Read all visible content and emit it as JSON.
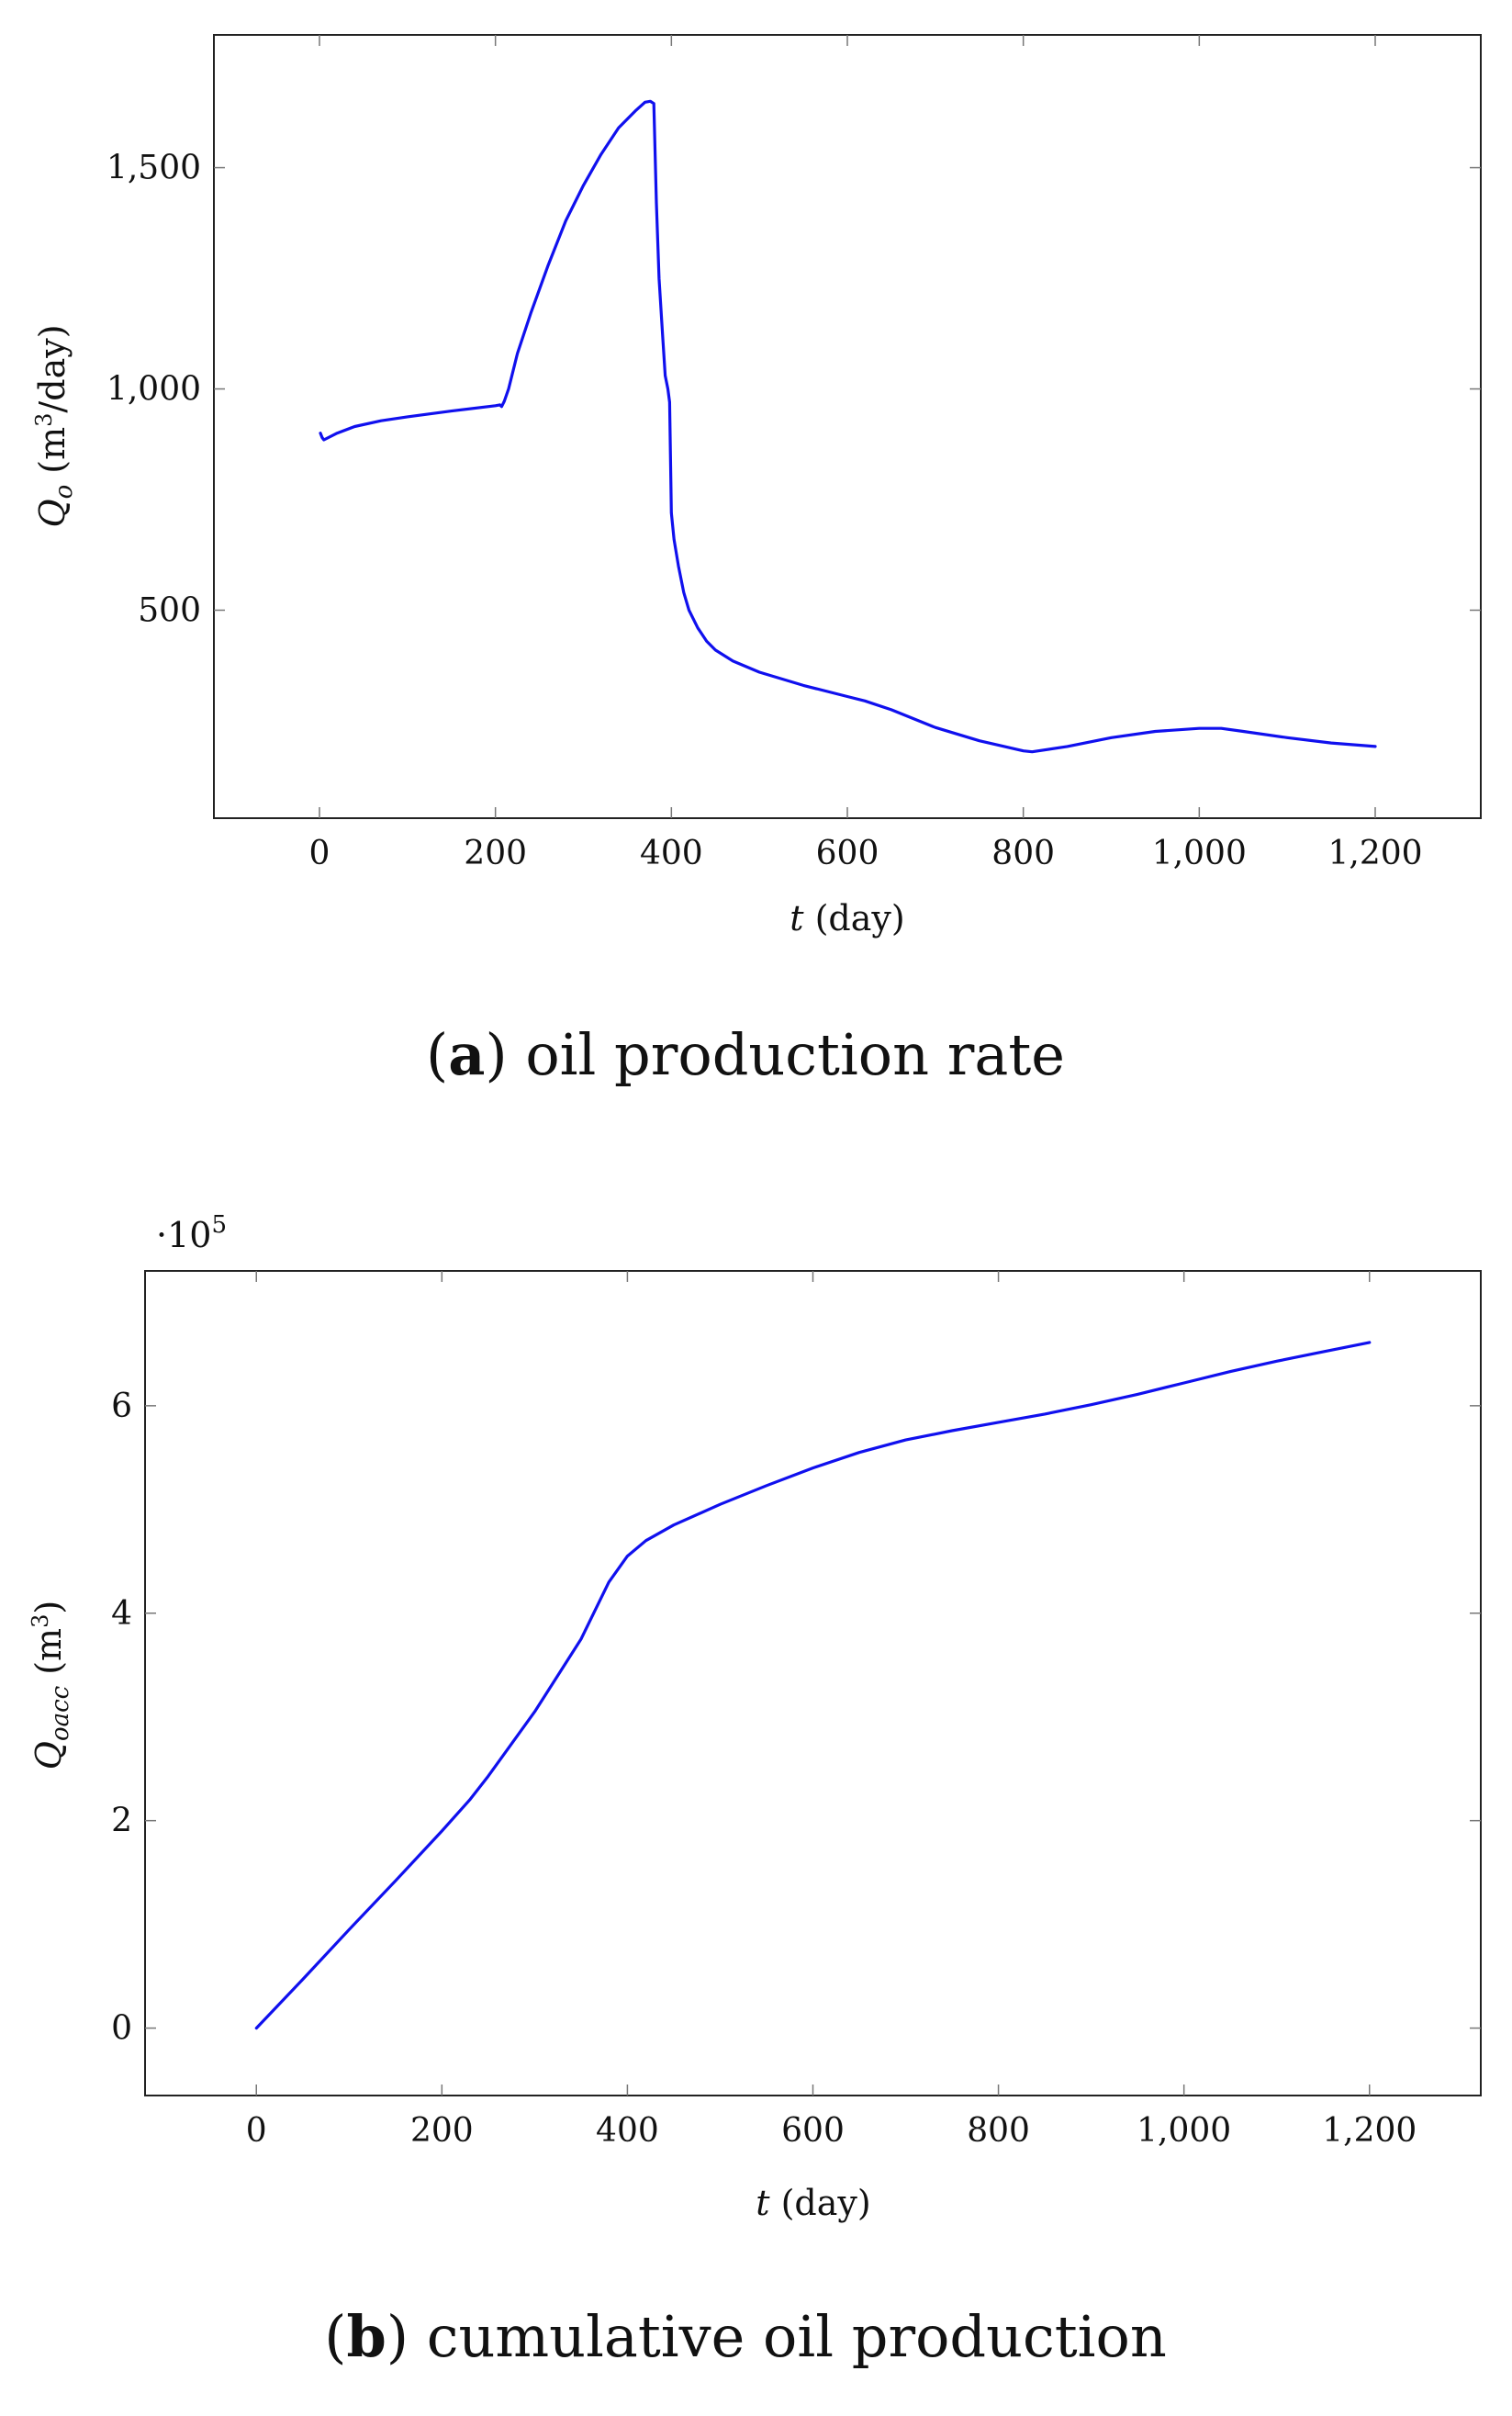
{
  "chart_data": [
    {
      "type": "line",
      "caption_letter": "a",
      "caption_text": "oil production rate",
      "xlabel_symbol": "t",
      "xlabel_unit": "(day)",
      "ylabel_symbol": "Q",
      "ylabel_sub": "o",
      "ylabel_unit_pre": "(m",
      "ylabel_unit_sup": "3",
      "ylabel_unit_post": "/day)",
      "xlim": [
        -120,
        1320
      ],
      "ylim": [
        30,
        1800
      ],
      "xticks": [
        {
          "value": 0,
          "label": "0"
        },
        {
          "value": 200,
          "label": "200"
        },
        {
          "value": 400,
          "label": "400"
        },
        {
          "value": 600,
          "label": "600"
        },
        {
          "value": 800,
          "label": "800"
        },
        {
          "value": 1000,
          "label": "1,000"
        },
        {
          "value": 1200,
          "label": "1,200"
        }
      ],
      "yticks": [
        {
          "value": 500,
          "label": "500"
        },
        {
          "value": 1000,
          "label": "1,000"
        },
        {
          "value": 1500,
          "label": "1,500"
        }
      ],
      "grid": false,
      "series": [
        {
          "color": "#1010ee",
          "x": [
            1,
            3,
            5,
            20,
            40,
            70,
            100,
            150,
            200,
            205,
            207,
            210,
            215,
            225,
            240,
            260,
            280,
            300,
            320,
            340,
            360,
            370,
            376,
            380,
            383,
            386,
            390,
            393,
            396,
            398,
            400,
            403,
            408,
            414,
            420,
            430,
            440,
            450,
            470,
            500,
            550,
            600,
            620,
            650,
            700,
            750,
            800,
            810,
            850,
            900,
            950,
            1000,
            1025,
            1050,
            1100,
            1150,
            1200
          ],
          "y": [
            900,
            890,
            885,
            900,
            915,
            928,
            937,
            950,
            962,
            964,
            960,
            972,
            1000,
            1080,
            1170,
            1280,
            1380,
            1460,
            1530,
            1590,
            1630,
            1648,
            1650,
            1645,
            1420,
            1250,
            1120,
            1030,
            1000,
            970,
            720,
            660,
            600,
            540,
            500,
            460,
            430,
            410,
            385,
            360,
            330,
            305,
            295,
            275,
            235,
            205,
            182,
            180,
            192,
            212,
            226,
            233,
            233,
            226,
            212,
            200,
            192
          ]
        }
      ]
    },
    {
      "type": "line",
      "caption_letter": "b",
      "caption_text": "cumulative oil production",
      "scale_prefix": "·10",
      "scale_exponent": "5",
      "xlabel_symbol": "t",
      "xlabel_unit": "(day)",
      "ylabel_symbol": "Q",
      "ylabel_sub": "oacc",
      "ylabel_unit_pre": "(m",
      "ylabel_unit_sup": "3",
      "ylabel_unit_post": ")",
      "xlim": [
        -120,
        1320
      ],
      "ylim": [
        -0.65,
        7.3
      ],
      "xticks": [
        {
          "value": 0,
          "label": "0"
        },
        {
          "value": 200,
          "label": "200"
        },
        {
          "value": 400,
          "label": "400"
        },
        {
          "value": 600,
          "label": "600"
        },
        {
          "value": 800,
          "label": "800"
        },
        {
          "value": 1000,
          "label": "1,000"
        },
        {
          "value": 1200,
          "label": "1,200"
        }
      ],
      "yticks": [
        {
          "value": 0,
          "label": "0"
        },
        {
          "value": 2,
          "label": "2"
        },
        {
          "value": 4,
          "label": "4"
        },
        {
          "value": 6,
          "label": "6"
        }
      ],
      "grid": false,
      "series": [
        {
          "color": "#1010ee",
          "x": [
            0,
            50,
            100,
            150,
            200,
            230,
            250,
            300,
            350,
            380,
            400,
            420,
            450,
            500,
            550,
            600,
            650,
            700,
            750,
            800,
            850,
            900,
            950,
            1000,
            1050,
            1100,
            1150,
            1200
          ],
          "y": [
            0,
            0.47,
            0.95,
            1.42,
            1.9,
            2.2,
            2.43,
            3.05,
            3.75,
            4.3,
            4.55,
            4.7,
            4.85,
            5.05,
            5.23,
            5.4,
            5.55,
            5.67,
            5.76,
            5.84,
            5.92,
            6.01,
            6.11,
            6.22,
            6.33,
            6.43,
            6.52,
            6.61
          ]
        }
      ]
    }
  ]
}
